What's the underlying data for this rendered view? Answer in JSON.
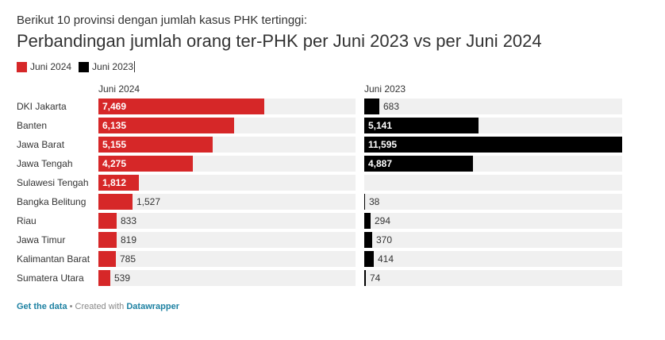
{
  "header": {
    "subtitle": "Berikut 10 provinsi dengan jumlah kasus PHK tertinggi:",
    "title": "Perbandingan jumlah orang ter-PHK per Juni 2023 vs per Juni 2024"
  },
  "legend": [
    {
      "label": "Juni 2024",
      "color": "#d62728"
    },
    {
      "label": "Juni 2023",
      "color": "#000000"
    }
  ],
  "footer": {
    "get_data": "Get the data",
    "separator": " • Created with ",
    "brand": "Datawrapper"
  },
  "chart_data": {
    "type": "bar",
    "categories": [
      "DKI Jakarta",
      "Banten",
      "Jawa Barat",
      "Jawa Tengah",
      "Sulawesi Tengah",
      "Bangka Belitung",
      "Riau",
      "Jawa Timur",
      "Kalimantan Barat",
      "Sumatera Utara"
    ],
    "series": [
      {
        "name": "Juni 2024",
        "color": "#d62728",
        "values": [
          7469,
          6135,
          5155,
          4275,
          1812,
          1527,
          833,
          819,
          785,
          539
        ],
        "labels": [
          "7,469",
          "6,135",
          "5,155",
          "4,275",
          "1,812",
          "1,527",
          "833",
          "819",
          "785",
          "539"
        ]
      },
      {
        "name": "Juni 2023",
        "color": "#000000",
        "values": [
          683,
          5141,
          11595,
          4887,
          null,
          38,
          294,
          370,
          414,
          74
        ],
        "labels": [
          "683",
          "5,141",
          "11,595",
          "4,887",
          "",
          "38",
          "294",
          "370",
          "414",
          "74"
        ]
      }
    ],
    "xlim": [
      0,
      11595
    ],
    "grid": false,
    "legend_position": "top-left"
  }
}
